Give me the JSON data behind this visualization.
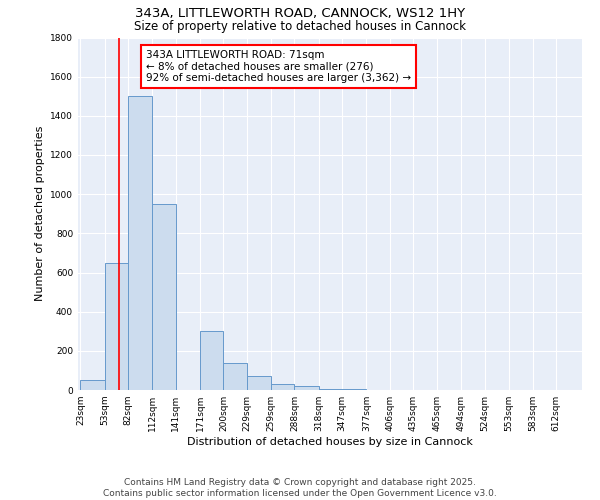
{
  "title_line1": "343A, LITTLEWORTH ROAD, CANNOCK, WS12 1HY",
  "title_line2": "Size of property relative to detached houses in Cannock",
  "xlabel": "Distribution of detached houses by size in Cannock",
  "ylabel": "Number of detached properties",
  "bar_edges": [
    23,
    53,
    82,
    112,
    141,
    171,
    200,
    229,
    259,
    288,
    318,
    347,
    377,
    406,
    435,
    465,
    494,
    524,
    553,
    583,
    612
  ],
  "bar_heights": [
    50,
    650,
    1500,
    950,
    0,
    300,
    140,
    70,
    30,
    20,
    5,
    5,
    0,
    0,
    0,
    0,
    0,
    0,
    0,
    0,
    0
  ],
  "bar_color": "#ccdcee",
  "bar_edge_color": "#6699cc",
  "red_line_x": 71,
  "annotation_line1": "343A LITTLEWORTH ROAD: 71sqm",
  "annotation_line2": "← 8% of detached houses are smaller (276)",
  "annotation_line3": "92% of semi-detached houses are larger (3,362) →",
  "annotation_box_color": "white",
  "annotation_box_edge_color": "red",
  "ylim": [
    0,
    1800
  ],
  "yticks": [
    0,
    200,
    400,
    600,
    800,
    1000,
    1200,
    1400,
    1600,
    1800
  ],
  "background_color": "#e8eef8",
  "grid_color": "white",
  "footer_line1": "Contains HM Land Registry data © Crown copyright and database right 2025.",
  "footer_line2": "Contains public sector information licensed under the Open Government Licence v3.0.",
  "title_fontsize": 9.5,
  "subtitle_fontsize": 8.5,
  "axis_label_fontsize": 8,
  "tick_fontsize": 6.5,
  "annotation_fontsize": 7.5,
  "footer_fontsize": 6.5
}
